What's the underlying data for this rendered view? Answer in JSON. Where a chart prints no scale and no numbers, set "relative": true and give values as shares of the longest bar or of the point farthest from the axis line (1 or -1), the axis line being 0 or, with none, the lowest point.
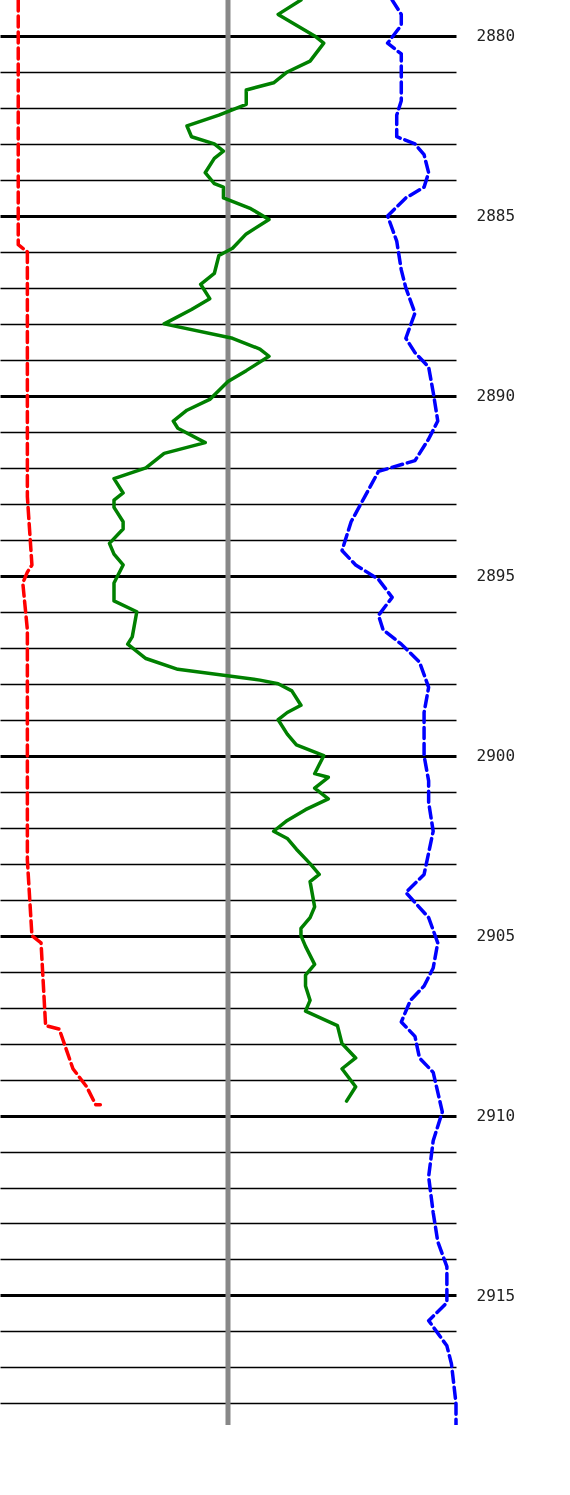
{
  "chart_data": {
    "type": "line",
    "orientation": "horizontal",
    "relative": true,
    "tick_labels": "y",
    "grid": true,
    "ref_lines": [
      {
        "axis": "x",
        "value": 0.5,
        "color": "#888888"
      }
    ],
    "ylim": [
      2918.6,
      2879.0
    ],
    "yticks": [
      2880,
      {
        "value": 2881,
        "label": null
      },
      {
        "value": 2882,
        "label": null
      },
      {
        "value": 2883,
        "label": null
      },
      {
        "value": 2884,
        "label": null
      },
      2885,
      {
        "value": 2886,
        "label": null
      },
      {
        "value": 2887,
        "label": null
      },
      {
        "value": 2888,
        "label": null
      },
      {
        "value": 2889,
        "label": null
      },
      2890,
      {
        "value": 2891,
        "label": null
      },
      {
        "value": 2892,
        "label": null
      },
      {
        "value": 2893,
        "label": null
      },
      {
        "value": 2894,
        "label": null
      },
      2895,
      {
        "value": 2896,
        "label": null
      },
      {
        "value": 2897,
        "label": null
      },
      {
        "value": 2898,
        "label": null
      },
      {
        "value": 2899,
        "label": null
      },
      2900,
      {
        "value": 2901,
        "label": null
      },
      {
        "value": 2902,
        "label": null
      },
      {
        "value": 2903,
        "label": null
      },
      {
        "value": 2904,
        "label": null
      },
      2905,
      {
        "value": 2906,
        "label": null
      },
      {
        "value": 2907,
        "label": null
      },
      {
        "value": 2908,
        "label": null
      },
      {
        "value": 2909,
        "label": null
      },
      2910,
      {
        "value": 2911,
        "label": null
      },
      {
        "value": 2912,
        "label": null
      },
      {
        "value": 2913,
        "label": null
      },
      {
        "value": 2914,
        "label": null
      },
      2915,
      {
        "value": 2916,
        "label": null
      },
      {
        "value": 2917,
        "label": null
      },
      {
        "value": 2918,
        "label": null
      }
    ],
    "series": [
      {
        "color": "#ff0000",
        "line_style": "dashed",
        "x": [
          2879.0,
          2880.0,
          2882.2,
          2885.0,
          2885.8,
          2886.0,
          2889.6,
          2892.8,
          2894.7,
          2894.9,
          2895.2,
          2896.5,
          2902.9,
          2905.0,
          2905.2,
          2907.5,
          2907.6,
          2908.7,
          2909.2,
          2909.7,
          2909.7
        ],
        "values": [
          0.04,
          0.04,
          0.04,
          0.04,
          0.04,
          0.06,
          0.06,
          0.06,
          0.07,
          0.06,
          0.05,
          0.06,
          0.06,
          0.07,
          0.09,
          0.1,
          0.13,
          0.16,
          0.19,
          0.21,
          0.22
        ]
      },
      {
        "color": "#008000",
        "line_style": "solid",
        "x": [
          2879.0,
          2879.4,
          2879.7,
          2880.0,
          2880.2,
          2880.7,
          2881.0,
          2881.3,
          2881.5,
          2881.9,
          2882.2,
          2882.5,
          2882.8,
          2883.0,
          2883.2,
          2883.4,
          2883.8,
          2884.1,
          2884.2,
          2884.5,
          2884.8,
          2885.1,
          2885.5,
          2885.9,
          2886.1,
          2886.6,
          2886.9,
          2887.3,
          2887.6,
          2888.0,
          2888.4,
          2888.7,
          2888.9,
          2889.3,
          2889.6,
          2890.1,
          2890.4,
          2890.7,
          2890.9,
          2891.3,
          2891.6,
          2892.0,
          2892.3,
          2892.7,
          2892.9,
          2893.1,
          2893.5,
          2893.7,
          2894.1,
          2894.4,
          2894.7,
          2895.2,
          2895.7,
          2896.0,
          2896.7,
          2896.9,
          2897.3,
          2897.6,
          2897.9,
          2898.0,
          2898.2,
          2898.6,
          2898.8,
          2899.0,
          2899.4,
          2899.7,
          2900.0,
          2900.5,
          2900.6,
          2900.9,
          2901.2,
          2901.5,
          2901.8,
          2902.1,
          2902.3,
          2902.6,
          2903.0,
          2903.3,
          2903.5,
          2904.2,
          2904.5,
          2904.8,
          2905.0,
          2905.3,
          2905.8,
          2906.1,
          2906.4,
          2906.8,
          2907.1,
          2907.5,
          2908.0,
          2908.4,
          2908.7,
          2909.2,
          2909.6
        ],
        "values": [
          0.66,
          0.61,
          0.65,
          0.69,
          0.71,
          0.68,
          0.63,
          0.6,
          0.54,
          0.54,
          0.48,
          0.41,
          0.42,
          0.47,
          0.49,
          0.47,
          0.45,
          0.47,
          0.49,
          0.49,
          0.55,
          0.59,
          0.54,
          0.51,
          0.48,
          0.47,
          0.44,
          0.46,
          0.42,
          0.36,
          0.51,
          0.57,
          0.59,
          0.54,
          0.5,
          0.46,
          0.41,
          0.38,
          0.39,
          0.45,
          0.36,
          0.32,
          0.25,
          0.27,
          0.25,
          0.25,
          0.27,
          0.27,
          0.24,
          0.25,
          0.27,
          0.25,
          0.25,
          0.3,
          0.29,
          0.28,
          0.32,
          0.39,
          0.57,
          0.61,
          0.64,
          0.66,
          0.63,
          0.61,
          0.63,
          0.65,
          0.71,
          0.69,
          0.72,
          0.69,
          0.72,
          0.67,
          0.63,
          0.6,
          0.63,
          0.65,
          0.68,
          0.7,
          0.68,
          0.69,
          0.68,
          0.66,
          0.66,
          0.67,
          0.69,
          0.67,
          0.67,
          0.68,
          0.67,
          0.74,
          0.75,
          0.78,
          0.75,
          0.78,
          0.76
        ]
      },
      {
        "color": "#0000ff",
        "line_style": "dashed",
        "x": [
          2879.0,
          2879.4,
          2879.7,
          2880.2,
          2880.5,
          2881.2,
          2881.8,
          2882.2,
          2882.8,
          2883.0,
          2883.3,
          2883.8,
          2884.2,
          2884.5,
          2885.0,
          2885.7,
          2886.5,
          2887.0,
          2887.7,
          2888.4,
          2888.8,
          2889.2,
          2889.9,
          2890.7,
          2891.2,
          2891.8,
          2892.1,
          2892.8,
          2893.5,
          2894.3,
          2894.7,
          2895.1,
          2895.6,
          2896.1,
          2896.5,
          2896.9,
          2897.4,
          2898.1,
          2898.8,
          2900.0,
          2900.7,
          2901.3,
          2902.1,
          2902.7,
          2903.3,
          2903.8,
          2904.5,
          2905.2,
          2905.9,
          2906.4,
          2906.8,
          2907.4,
          2907.8,
          2908.4,
          2908.8,
          2909.9,
          2910.7,
          2911.7,
          2912.7,
          2913.5,
          2914.2,
          2915.2,
          2915.7,
          2916.4,
          2916.9,
          2918.0,
          2918.6
        ],
        "values": [
          0.86,
          0.88,
          0.88,
          0.85,
          0.88,
          0.88,
          0.88,
          0.87,
          0.87,
          0.91,
          0.93,
          0.94,
          0.93,
          0.89,
          0.85,
          0.87,
          0.88,
          0.89,
          0.91,
          0.89,
          0.91,
          0.94,
          0.95,
          0.96,
          0.94,
          0.91,
          0.83,
          0.8,
          0.77,
          0.75,
          0.78,
          0.83,
          0.86,
          0.83,
          0.84,
          0.88,
          0.92,
          0.94,
          0.93,
          0.93,
          0.94,
          0.94,
          0.95,
          0.94,
          0.93,
          0.89,
          0.94,
          0.96,
          0.95,
          0.93,
          0.9,
          0.88,
          0.91,
          0.92,
          0.95,
          0.97,
          0.95,
          0.94,
          0.95,
          0.96,
          0.98,
          0.98,
          0.94,
          0.98,
          0.99,
          1.0,
          1.0
        ]
      }
    ]
  }
}
